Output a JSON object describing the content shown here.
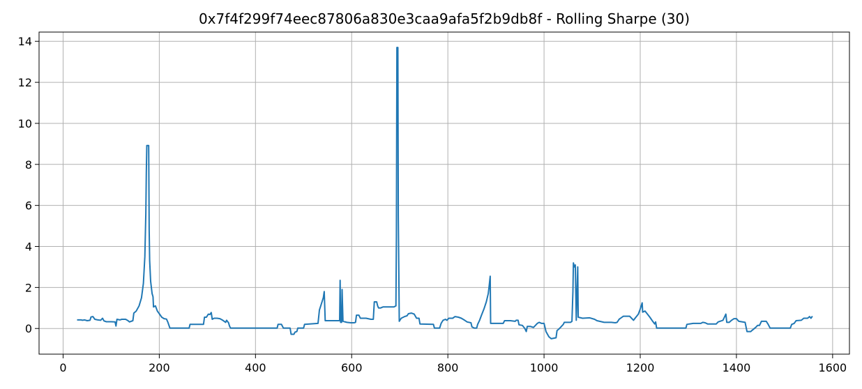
{
  "chart_data": {
    "type": "line",
    "title": "0x7f4f299f74eec87806a830e3caa9afa5f2b9db8f - Rolling Sharpe (30)",
    "xlabel": "",
    "ylabel": "",
    "xlim": [
      -50,
      1635
    ],
    "ylim": [
      -1.25,
      14.45
    ],
    "xticks": [
      0,
      200,
      400,
      600,
      800,
      1000,
      1200,
      1400,
      1600
    ],
    "yticks": [
      0,
      2,
      4,
      6,
      8,
      10,
      12,
      14
    ],
    "grid": true,
    "series": [
      {
        "color": "#1f77b4",
        "points": [
          [
            29,
            0.42
          ],
          [
            38,
            0.42
          ],
          [
            40,
            0.4
          ],
          [
            45,
            0.42
          ],
          [
            50,
            0.38
          ],
          [
            56,
            0.4
          ],
          [
            58,
            0.56
          ],
          [
            62,
            0.58
          ],
          [
            66,
            0.45
          ],
          [
            72,
            0.42
          ],
          [
            78,
            0.4
          ],
          [
            82,
            0.5
          ],
          [
            85,
            0.37
          ],
          [
            90,
            0.33
          ],
          [
            100,
            0.33
          ],
          [
            108,
            0.32
          ],
          [
            110,
            0.12
          ],
          [
            112,
            0.45
          ],
          [
            118,
            0.42
          ],
          [
            122,
            0.45
          ],
          [
            130,
            0.45
          ],
          [
            135,
            0.38
          ],
          [
            138,
            0.32
          ],
          [
            145,
            0.38
          ],
          [
            147,
            0.75
          ],
          [
            152,
            0.85
          ],
          [
            158,
            1.1
          ],
          [
            163,
            1.5
          ],
          [
            167,
            2.2
          ],
          [
            170,
            3.5
          ],
          [
            172,
            5.6
          ],
          [
            173,
            7.6
          ],
          [
            174,
            8.92
          ],
          [
            178,
            8.92
          ],
          [
            179,
            4.8
          ],
          [
            180,
            3.3
          ],
          [
            182,
            2.3
          ],
          [
            185,
            1.7
          ],
          [
            187,
            1.55
          ],
          [
            188,
            1.05
          ],
          [
            192,
            1.1
          ],
          [
            196,
            0.85
          ],
          [
            200,
            0.72
          ],
          [
            205,
            0.55
          ],
          [
            210,
            0.48
          ],
          [
            215,
            0.46
          ],
          [
            218,
            0.3
          ],
          [
            222,
            0.02
          ],
          [
            262,
            0.02
          ],
          [
            264,
            0.2
          ],
          [
            292,
            0.2
          ],
          [
            294,
            0.55
          ],
          [
            298,
            0.55
          ],
          [
            302,
            0.7
          ],
          [
            305,
            0.68
          ],
          [
            308,
            0.78
          ],
          [
            310,
            0.45
          ],
          [
            314,
            0.5
          ],
          [
            320,
            0.5
          ],
          [
            326,
            0.48
          ],
          [
            332,
            0.4
          ],
          [
            338,
            0.3
          ],
          [
            340,
            0.4
          ],
          [
            344,
            0.28
          ],
          [
            346,
            0.12
          ],
          [
            348,
            0.02
          ],
          [
            445,
            0.02
          ],
          [
            447,
            0.2
          ],
          [
            454,
            0.2
          ],
          [
            458,
            0.02
          ],
          [
            472,
            0.02
          ],
          [
            474,
            -0.28
          ],
          [
            480,
            -0.28
          ],
          [
            482,
            -0.18
          ],
          [
            486,
            -0.15
          ],
          [
            488,
            0.02
          ],
          [
            500,
            0.02
          ],
          [
            502,
            0.2
          ],
          [
            530,
            0.25
          ],
          [
            533,
            0.9
          ],
          [
            537,
            1.2
          ],
          [
            541,
            1.5
          ],
          [
            543,
            1.8
          ],
          [
            545,
            0.38
          ],
          [
            575,
            0.38
          ],
          [
            576,
            2.35
          ],
          [
            577,
            0.3
          ],
          [
            579,
            0.3
          ],
          [
            580,
            1.9
          ],
          [
            582,
            0.35
          ],
          [
            590,
            0.3
          ],
          [
            598,
            0.28
          ],
          [
            605,
            0.28
          ],
          [
            608,
            0.3
          ],
          [
            610,
            0.65
          ],
          [
            615,
            0.65
          ],
          [
            618,
            0.5
          ],
          [
            630,
            0.5
          ],
          [
            640,
            0.45
          ],
          [
            645,
            0.45
          ],
          [
            647,
            1.3
          ],
          [
            652,
            1.3
          ],
          [
            654,
            1.1
          ],
          [
            656,
            1.0
          ],
          [
            660,
            1.0
          ],
          [
            665,
            1.05
          ],
          [
            688,
            1.05
          ],
          [
            692,
            1.1
          ],
          [
            693,
            4.5
          ],
          [
            694,
            13.7
          ],
          [
            696,
            13.7
          ],
          [
            697,
            5.5
          ],
          [
            698,
            3.0
          ],
          [
            699,
            0.35
          ],
          [
            703,
            0.5
          ],
          [
            710,
            0.58
          ],
          [
            715,
            0.62
          ],
          [
            718,
            0.72
          ],
          [
            724,
            0.75
          ],
          [
            730,
            0.7
          ],
          [
            735,
            0.5
          ],
          [
            740,
            0.5
          ],
          [
            742,
            0.22
          ],
          [
            770,
            0.2
          ],
          [
            772,
            0.02
          ],
          [
            783,
            0.02
          ],
          [
            786,
            0.25
          ],
          [
            790,
            0.4
          ],
          [
            795,
            0.45
          ],
          [
            798,
            0.4
          ],
          [
            802,
            0.5
          ],
          [
            810,
            0.5
          ],
          [
            815,
            0.58
          ],
          [
            822,
            0.55
          ],
          [
            828,
            0.5
          ],
          [
            835,
            0.4
          ],
          [
            840,
            0.32
          ],
          [
            848,
            0.28
          ],
          [
            850,
            0.08
          ],
          [
            855,
            0.02
          ],
          [
            860,
            0.02
          ],
          [
            862,
            0.2
          ],
          [
            866,
            0.4
          ],
          [
            870,
            0.65
          ],
          [
            875,
            0.95
          ],
          [
            880,
            1.3
          ],
          [
            884,
            1.7
          ],
          [
            886,
            2.1
          ],
          [
            888,
            2.55
          ],
          [
            889,
            0.25
          ],
          [
            915,
            0.25
          ],
          [
            918,
            0.38
          ],
          [
            930,
            0.38
          ],
          [
            940,
            0.35
          ],
          [
            942,
            0.4
          ],
          [
            946,
            0.4
          ],
          [
            948,
            0.18
          ],
          [
            955,
            0.15
          ],
          [
            960,
            0.0
          ],
          [
            963,
            -0.15
          ],
          [
            965,
            0.1
          ],
          [
            972,
            0.1
          ],
          [
            978,
            0.05
          ],
          [
            982,
            0.15
          ],
          [
            986,
            0.25
          ],
          [
            990,
            0.3
          ],
          [
            995,
            0.25
          ],
          [
            1000,
            0.25
          ],
          [
            1004,
            -0.15
          ],
          [
            1010,
            -0.4
          ],
          [
            1015,
            -0.5
          ],
          [
            1025,
            -0.45
          ],
          [
            1027,
            -0.1
          ],
          [
            1032,
            0.0
          ],
          [
            1036,
            0.1
          ],
          [
            1040,
            0.2
          ],
          [
            1042,
            0.3
          ],
          [
            1055,
            0.3
          ],
          [
            1058,
            0.35
          ],
          [
            1060,
            1.8
          ],
          [
            1061,
            3.2
          ],
          [
            1063,
            3.0
          ],
          [
            1065,
            3.1
          ],
          [
            1067,
            0.4
          ],
          [
            1070,
            3.0
          ],
          [
            1071,
            0.55
          ],
          [
            1080,
            0.5
          ],
          [
            1095,
            0.52
          ],
          [
            1105,
            0.45
          ],
          [
            1110,
            0.38
          ],
          [
            1125,
            0.3
          ],
          [
            1140,
            0.3
          ],
          [
            1148,
            0.28
          ],
          [
            1152,
            0.3
          ],
          [
            1156,
            0.45
          ],
          [
            1165,
            0.6
          ],
          [
            1178,
            0.6
          ],
          [
            1182,
            0.5
          ],
          [
            1186,
            0.4
          ],
          [
            1190,
            0.52
          ],
          [
            1196,
            0.7
          ],
          [
            1200,
            0.95
          ],
          [
            1204,
            1.25
          ],
          [
            1205,
            0.8
          ],
          [
            1210,
            0.85
          ],
          [
            1215,
            0.7
          ],
          [
            1220,
            0.55
          ],
          [
            1226,
            0.35
          ],
          [
            1230,
            0.22
          ],
          [
            1232,
            0.32
          ],
          [
            1234,
            0.02
          ],
          [
            1295,
            0.02
          ],
          [
            1297,
            0.2
          ],
          [
            1302,
            0.22
          ],
          [
            1310,
            0.25
          ],
          [
            1326,
            0.25
          ],
          [
            1330,
            0.3
          ],
          [
            1335,
            0.28
          ],
          [
            1340,
            0.22
          ],
          [
            1358,
            0.22
          ],
          [
            1362,
            0.32
          ],
          [
            1372,
            0.4
          ],
          [
            1375,
            0.55
          ],
          [
            1378,
            0.7
          ],
          [
            1380,
            0.3
          ],
          [
            1385,
            0.3
          ],
          [
            1390,
            0.4
          ],
          [
            1395,
            0.48
          ],
          [
            1400,
            0.48
          ],
          [
            1405,
            0.35
          ],
          [
            1418,
            0.3
          ],
          [
            1422,
            -0.15
          ],
          [
            1430,
            -0.15
          ],
          [
            1432,
            -0.1
          ],
          [
            1440,
            0.05
          ],
          [
            1444,
            0.15
          ],
          [
            1448,
            0.15
          ],
          [
            1452,
            0.35
          ],
          [
            1462,
            0.35
          ],
          [
            1466,
            0.2
          ],
          [
            1470,
            0.02
          ],
          [
            1512,
            0.02
          ],
          [
            1515,
            0.2
          ],
          [
            1520,
            0.25
          ],
          [
            1524,
            0.38
          ],
          [
            1535,
            0.4
          ],
          [
            1540,
            0.5
          ],
          [
            1548,
            0.5
          ],
          [
            1552,
            0.58
          ],
          [
            1555,
            0.5
          ],
          [
            1558,
            0.6
          ]
        ]
      }
    ]
  }
}
